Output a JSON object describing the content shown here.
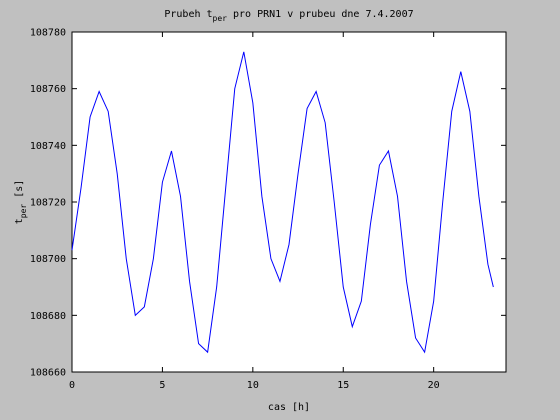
{
  "chart_data": {
    "type": "line",
    "title": [
      "Prubeh t",
      "per",
      " pro PRN1 v prubeu dne 7.4.2007"
    ],
    "xlabel": "cas [h]",
    "ylabel": [
      "t",
      "per",
      " [s]"
    ],
    "x": [
      0,
      0.5,
      1,
      1.5,
      2,
      2.5,
      3,
      3.5,
      4,
      4.5,
      5,
      5.5,
      6,
      6.5,
      7,
      7.5,
      8,
      8.5,
      9,
      9.5,
      10,
      10.5,
      11,
      11.5,
      12,
      12.5,
      13,
      13.5,
      14,
      14.5,
      15,
      15.5,
      16,
      16.5,
      17,
      17.5,
      18,
      18.5,
      19,
      19.5,
      20,
      20.5,
      21,
      21.5,
      22,
      22.5,
      23,
      23.3
    ],
    "series": [
      {
        "color": "#0000ff",
        "values": [
          108703,
          108725,
          108750,
          108759,
          108752,
          108730,
          108700,
          108680,
          108683,
          108700,
          108727,
          108738,
          108722,
          108692,
          108670,
          108667,
          108690,
          108725,
          108760,
          108773,
          108755,
          108722,
          108700,
          108692,
          108705,
          108730,
          108753,
          108759,
          108748,
          108720,
          108690,
          108676,
          108685,
          108712,
          108733,
          108738,
          108722,
          108692,
          108672,
          108667,
          108685,
          108720,
          108752,
          108766,
          108752,
          108722,
          108698,
          108690
        ]
      }
    ],
    "xlim": [
      0,
      24
    ],
    "xticks": [
      0,
      5,
      10,
      15,
      20
    ],
    "ylim": [
      108660,
      108780
    ],
    "yticks": [
      108660,
      108680,
      108700,
      108720,
      108740,
      108760,
      108780
    ]
  }
}
